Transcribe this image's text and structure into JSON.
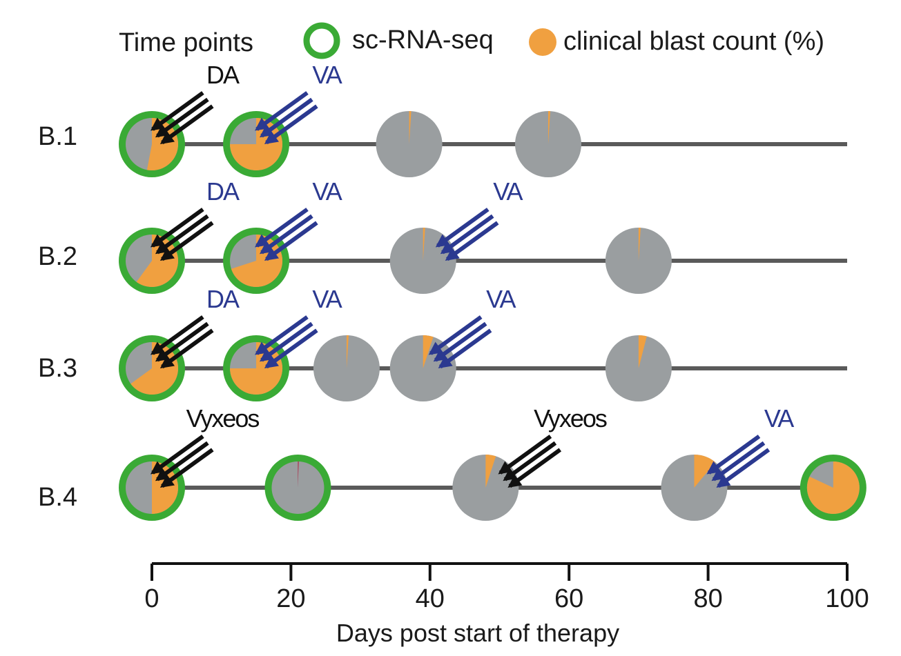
{
  "chart_data": {
    "type": "timeline-pie",
    "xlabel": "Days post start of therapy",
    "xlim": [
      0,
      100
    ],
    "xticks": [
      0,
      20,
      40,
      60,
      80,
      100
    ],
    "legend": {
      "title": "Time points",
      "placement": "top",
      "items": [
        {
          "label": "sc-RNA-seq",
          "marker": "ring",
          "color": "#3aaa35"
        },
        {
          "label": "clinical blast count (%)",
          "marker": "dot",
          "color": "#f0a040"
        }
      ]
    },
    "colors": {
      "blast": "#f0a040",
      "non_blast": "#9a9ea0",
      "scrnaseq_ring": "#3aaa35",
      "timeline": "#5a5a5a",
      "chemo_arrow": "#111111",
      "va_arrow": "#2b3990",
      "trace_slice": "#b02040"
    },
    "patients": [
      {
        "label": "B.1",
        "line_end_day": 100,
        "timepoints": [
          {
            "day": 0,
            "blast_pct": 53,
            "scrnaseq": true
          },
          {
            "day": 15,
            "blast_pct": 75,
            "scrnaseq": true
          },
          {
            "day": 37,
            "blast_pct": 1,
            "scrnaseq": false
          },
          {
            "day": 57,
            "blast_pct": 1,
            "scrnaseq": false
          }
        ],
        "treatments": [
          {
            "label": "DA",
            "target_day": 0,
            "color_role": "chemo",
            "label_color_role": "chemo"
          },
          {
            "label": "VA",
            "target_day": 15,
            "color_role": "va",
            "label_color_role": "va"
          }
        ]
      },
      {
        "label": "B.2",
        "line_end_day": 100,
        "timepoints": [
          {
            "day": 0,
            "blast_pct": 60,
            "scrnaseq": true
          },
          {
            "day": 15,
            "blast_pct": 70,
            "scrnaseq": true
          },
          {
            "day": 39,
            "blast_pct": 1,
            "scrnaseq": false
          },
          {
            "day": 70,
            "blast_pct": 1,
            "scrnaseq": false
          }
        ],
        "treatments": [
          {
            "label": "DA",
            "target_day": 0,
            "color_role": "chemo",
            "label_color_role": "va"
          },
          {
            "label": "VA",
            "target_day": 15,
            "color_role": "va",
            "label_color_role": "va"
          },
          {
            "label": "VA",
            "target_day": 41,
            "color_role": "va",
            "label_color_role": "va"
          }
        ]
      },
      {
        "label": "B.3",
        "line_end_day": 100,
        "timepoints": [
          {
            "day": 0,
            "blast_pct": 65,
            "scrnaseq": true
          },
          {
            "day": 15,
            "blast_pct": 75,
            "scrnaseq": true
          },
          {
            "day": 28,
            "blast_pct": 1,
            "scrnaseq": false
          },
          {
            "day": 39,
            "blast_pct": 5,
            "scrnaseq": false
          },
          {
            "day": 70,
            "blast_pct": 4,
            "scrnaseq": false
          }
        ],
        "treatments": [
          {
            "label": "DA",
            "target_day": 0,
            "color_role": "chemo",
            "label_color_role": "va"
          },
          {
            "label": "VA",
            "target_day": 15,
            "color_role": "va",
            "label_color_role": "va"
          },
          {
            "label": "VA",
            "target_day": 40,
            "color_role": "va",
            "label_color_role": "va"
          }
        ]
      },
      {
        "label": "B.4",
        "line_end_day": 95,
        "timepoints": [
          {
            "day": 0,
            "blast_pct": 50,
            "scrnaseq": true
          },
          {
            "day": 21,
            "blast_pct": 0.5,
            "scrnaseq": true,
            "trace": true
          },
          {
            "day": 48,
            "blast_pct": 5,
            "scrnaseq": false
          },
          {
            "day": 78,
            "blast_pct": 11,
            "scrnaseq": false
          },
          {
            "day": 98,
            "blast_pct": 82,
            "scrnaseq": true
          }
        ],
        "treatments": [
          {
            "label": "Vyxeos",
            "target_day": 0,
            "color_role": "chemo",
            "label_color_role": "chemo"
          },
          {
            "label": "Vyxeos",
            "target_day": 50,
            "color_role": "chemo",
            "label_color_role": "chemo"
          },
          {
            "label": "VA",
            "target_day": 80,
            "color_role": "va",
            "label_color_role": "va"
          }
        ]
      }
    ]
  }
}
